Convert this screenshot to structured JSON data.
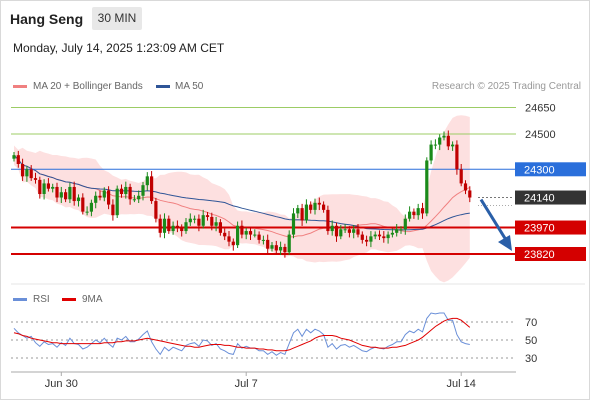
{
  "header": {
    "title": "Hang Seng",
    "period": "30 MIN",
    "datetime": "Monday, July 14, 2025 1:23:09 AM CET",
    "credit": "Research © 2025 Trading Central"
  },
  "colors": {
    "candle_up": "#1a8a1a",
    "candle_down": "#c00000",
    "bollinger_band": "#fde0e0",
    "ma20": "#f08080",
    "ma50": "#2f5597",
    "resistance": "#9ccc65",
    "pivot": "#2a6fdb",
    "support": "#d40000",
    "last_price": "#333333",
    "arrow": "#2a5fa8",
    "rsi": "#6a8fd8",
    "rsi_ma": "#e00000"
  },
  "chart_data": [
    {
      "type": "candlestick",
      "legend": [
        "MA 20 + Bollinger Bands",
        "MA 50"
      ],
      "ylim": [
        23690,
        24700
      ],
      "x_ticks": [
        {
          "label": "Jun 30",
          "index": 11
        },
        {
          "label": "Jul 7",
          "index": 54
        },
        {
          "label": "Jul 14",
          "index": 104
        }
      ],
      "levels": [
        {
          "value": 24650,
          "label": "24650",
          "kind": "resistance"
        },
        {
          "value": 24500,
          "label": "24500",
          "kind": "resistance"
        },
        {
          "value": 24300,
          "label": "24300",
          "kind": "pivot"
        },
        {
          "value": 24140,
          "label": "24140",
          "kind": "last"
        },
        {
          "value": 23970,
          "label": "23970",
          "kind": "support"
        },
        {
          "value": 23820,
          "label": "23820",
          "kind": "support"
        }
      ],
      "closes": [
        24380,
        24330,
        24260,
        24300,
        24250,
        24240,
        24160,
        24220,
        24190,
        24200,
        24140,
        24170,
        24130,
        24200,
        24120,
        24140,
        24060,
        24060,
        24110,
        24150,
        24140,
        24180,
        24100,
        24040,
        24190,
        24160,
        24200,
        24130,
        24130,
        24150,
        24210,
        24260,
        24120,
        24020,
        23940,
        24020,
        23950,
        23980,
        23970,
        23950,
        24000,
        24020,
        24020,
        23980,
        24040,
        24030,
        23980,
        24000,
        23940,
        23920,
        23890,
        23870,
        23980,
        23930,
        23950,
        23930,
        23930,
        23900,
        23900,
        23850,
        23870,
        23840,
        23860,
        23830,
        23930,
        24050,
        24080,
        24010,
        24100,
        24070,
        24110,
        24100,
        24070,
        23950,
        23980,
        23920,
        23960,
        23960,
        23940,
        23960,
        23930,
        23900,
        23890,
        23920,
        23930,
        23920,
        23910,
        23930,
        23940,
        23960,
        23960,
        24020,
        24060,
        24040,
        24080,
        24050,
        24350,
        24440,
        24440,
        24480,
        24490,
        24430,
        24440,
        24300,
        24220,
        24180,
        24140
      ]
    },
    {
      "type": "line",
      "legend": [
        "RSI",
        "9MA"
      ],
      "ylim": [
        20,
        80
      ],
      "y_ticks": [
        30,
        50,
        70
      ],
      "series": [
        {
          "name": "RSI",
          "values": [
            63,
            58,
            55,
            52,
            54,
            47,
            43,
            48,
            45,
            46,
            42,
            47,
            44,
            52,
            46,
            45,
            40,
            42,
            46,
            50,
            47,
            52,
            46,
            42,
            52,
            50,
            54,
            48,
            48,
            51,
            56,
            60,
            48,
            40,
            34,
            42,
            38,
            42,
            40,
            38,
            44,
            46,
            47,
            43,
            50,
            49,
            44,
            46,
            40,
            38,
            35,
            34,
            46,
            41,
            43,
            41,
            41,
            38,
            38,
            34,
            37,
            33,
            36,
            34,
            46,
            58,
            62,
            54,
            62,
            58,
            62,
            60,
            56,
            42,
            46,
            40,
            44,
            45,
            42,
            44,
            41,
            38,
            37,
            40,
            42,
            41,
            40,
            43,
            45,
            48,
            48,
            56,
            60,
            58,
            62,
            59,
            74,
            80,
            79,
            80,
            80,
            72,
            72,
            56,
            48,
            46,
            45
          ]
        },
        {
          "name": "9MA",
          "values": [
            58,
            57,
            55,
            54,
            52,
            51,
            50,
            49,
            48,
            47,
            47,
            46,
            46,
            46,
            46,
            46,
            46,
            46,
            46,
            46,
            46,
            47,
            47,
            47,
            48,
            48,
            49,
            49,
            49,
            50,
            51,
            52,
            51,
            50,
            49,
            48,
            47,
            46,
            45,
            44,
            43,
            43,
            42,
            42,
            43,
            44,
            45,
            45,
            45,
            44,
            44,
            43,
            42,
            42,
            41,
            41,
            41,
            40,
            40,
            39,
            39,
            38,
            38,
            38,
            39,
            41,
            43,
            45,
            47,
            49,
            52,
            54,
            55,
            55,
            55,
            54,
            52,
            51,
            50,
            48,
            46,
            44,
            43,
            42,
            42,
            41,
            41,
            41,
            42,
            42,
            43,
            44,
            46,
            48,
            50,
            53,
            57,
            61,
            65,
            68,
            71,
            73,
            74,
            74,
            72,
            68,
            64
          ]
        }
      ]
    }
  ]
}
